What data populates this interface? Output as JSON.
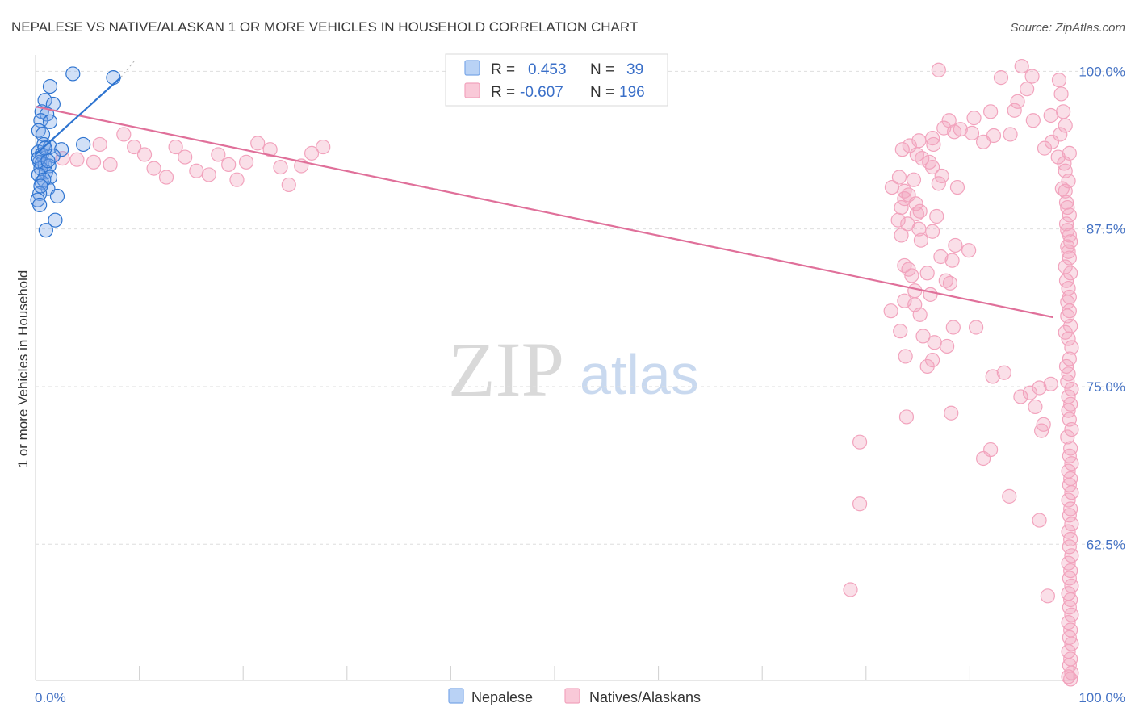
{
  "chart_data": {
    "type": "scatter",
    "title": "NEPALESE VS NATIVE/ALASKAN 1 OR MORE VEHICLES IN HOUSEHOLD CORRELATION CHART",
    "source": "Source: ZipAtlas.com",
    "xlabel": "",
    "ylabel": "1 or more Vehicles in Household",
    "xlim": [
      0,
      100
    ],
    "ylim": [
      51.7,
      101.3
    ],
    "x_tick_labels": [
      "0.0%",
      "100.0%"
    ],
    "y_ticks": [
      62.5,
      75.0,
      87.5,
      100.0
    ],
    "y_tick_labels": [
      "62.5%",
      "75.0%",
      "87.5%",
      "100.0%"
    ],
    "grid": true,
    "watermark": {
      "zip": "ZIP",
      "atlas": "atlas"
    },
    "colors": {
      "nepalese": "#7aa7e8",
      "nepalese_line": "#2e74d0",
      "natives": "#f2a3bd",
      "natives_line": "#e0709a"
    },
    "legend_stats": {
      "r_label": "R =",
      "n_label": "N =",
      "nepalese_r": "0.453",
      "nepalese_n": "39",
      "natives_r": "-0.607",
      "natives_n": "196"
    },
    "series": [
      {
        "name": "Nepalese",
        "trend": {
          "x": [
            0.0,
            8.2
          ],
          "y": [
            93.4,
            99.5
          ]
        },
        "points": [
          [
            3.6,
            99.8
          ],
          [
            7.5,
            99.5
          ],
          [
            1.4,
            98.8
          ],
          [
            0.9,
            97.7
          ],
          [
            1.7,
            97.4
          ],
          [
            0.6,
            96.8
          ],
          [
            1.1,
            96.6
          ],
          [
            0.5,
            96.1
          ],
          [
            1.4,
            96.0
          ],
          [
            0.3,
            95.3
          ],
          [
            0.7,
            95.0
          ],
          [
            4.6,
            94.2
          ],
          [
            0.8,
            94.2
          ],
          [
            1.4,
            94.0
          ],
          [
            2.5,
            93.8
          ],
          [
            0.3,
            93.6
          ],
          [
            0.6,
            93.4
          ],
          [
            1.7,
            93.3
          ],
          [
            0.4,
            92.8
          ],
          [
            0.6,
            92.7
          ],
          [
            0.9,
            92.6
          ],
          [
            1.3,
            92.5
          ],
          [
            0.5,
            92.3
          ],
          [
            1.0,
            92.0
          ],
          [
            0.3,
            91.8
          ],
          [
            1.4,
            91.6
          ],
          [
            0.6,
            91.2
          ],
          [
            1.2,
            90.7
          ],
          [
            0.4,
            90.3
          ],
          [
            2.1,
            90.1
          ],
          [
            0.2,
            89.8
          ],
          [
            0.4,
            89.4
          ],
          [
            1.9,
            88.2
          ],
          [
            1.0,
            87.4
          ],
          [
            0.3,
            93.1
          ],
          [
            0.8,
            91.4
          ],
          [
            1.2,
            92.9
          ],
          [
            0.5,
            90.9
          ],
          [
            0.9,
            93.9
          ]
        ]
      },
      {
        "name": "Natives/Alaskans",
        "trend": {
          "x": [
            0.0,
            98.0
          ],
          "y": [
            97.2,
            80.5
          ]
        },
        "points": [
          [
            95.0,
            100.4
          ],
          [
            87.0,
            100.1
          ],
          [
            93.0,
            99.5
          ],
          [
            96.0,
            99.6
          ],
          [
            95.5,
            98.6
          ],
          [
            98.8,
            98.2
          ],
          [
            94.6,
            97.6
          ],
          [
            94.3,
            96.9
          ],
          [
            92.0,
            96.8
          ],
          [
            90.4,
            96.3
          ],
          [
            88.0,
            96.1
          ],
          [
            87.5,
            95.5
          ],
          [
            88.5,
            95.2
          ],
          [
            89.1,
            95.4
          ],
          [
            90.2,
            95.1
          ],
          [
            86.4,
            94.7
          ],
          [
            85.1,
            94.5
          ],
          [
            86.5,
            94.2
          ],
          [
            92.3,
            94.9
          ],
          [
            93.9,
            95.0
          ],
          [
            91.3,
            94.4
          ],
          [
            84.2,
            94.1
          ],
          [
            83.5,
            93.8
          ],
          [
            84.9,
            93.4
          ],
          [
            85.4,
            93.1
          ],
          [
            86.1,
            92.8
          ],
          [
            86.4,
            92.4
          ],
          [
            87.3,
            91.7
          ],
          [
            87.0,
            91.1
          ],
          [
            83.2,
            91.6
          ],
          [
            84.6,
            91.4
          ],
          [
            88.8,
            90.8
          ],
          [
            82.5,
            90.8
          ],
          [
            83.7,
            90.5
          ],
          [
            84.1,
            90.2
          ],
          [
            83.7,
            89.9
          ],
          [
            84.8,
            89.5
          ],
          [
            83.4,
            89.2
          ],
          [
            85.2,
            88.9
          ],
          [
            86.8,
            88.5
          ],
          [
            84.9,
            88.7
          ],
          [
            83.1,
            88.2
          ],
          [
            84.0,
            87.9
          ],
          [
            85.1,
            87.5
          ],
          [
            86.4,
            87.3
          ],
          [
            83.4,
            87.0
          ],
          [
            85.3,
            86.6
          ],
          [
            88.6,
            86.2
          ],
          [
            89.9,
            85.8
          ],
          [
            87.2,
            85.3
          ],
          [
            88.3,
            85.0
          ],
          [
            83.7,
            84.6
          ],
          [
            84.1,
            84.3
          ],
          [
            85.9,
            84.0
          ],
          [
            84.4,
            83.8
          ],
          [
            87.7,
            83.4
          ],
          [
            88.1,
            83.2
          ],
          [
            84.7,
            82.6
          ],
          [
            86.2,
            82.3
          ],
          [
            83.7,
            81.8
          ],
          [
            84.7,
            81.5
          ],
          [
            82.4,
            81.0
          ],
          [
            85.2,
            80.7
          ],
          [
            88.4,
            79.7
          ],
          [
            90.6,
            79.7
          ],
          [
            83.3,
            79.4
          ],
          [
            85.5,
            79.0
          ],
          [
            86.6,
            78.5
          ],
          [
            87.8,
            78.2
          ],
          [
            83.8,
            77.4
          ],
          [
            86.4,
            77.1
          ],
          [
            85.9,
            76.6
          ],
          [
            93.3,
            76.1
          ],
          [
            92.2,
            75.8
          ],
          [
            97.8,
            75.2
          ],
          [
            96.7,
            74.9
          ],
          [
            95.8,
            74.5
          ],
          [
            94.9,
            74.2
          ],
          [
            96.3,
            73.4
          ],
          [
            88.2,
            72.9
          ],
          [
            83.9,
            72.6
          ],
          [
            97.1,
            72.0
          ],
          [
            96.9,
            71.5
          ],
          [
            79.4,
            70.6
          ],
          [
            92.0,
            70.0
          ],
          [
            91.3,
            69.3
          ],
          [
            93.8,
            66.3
          ],
          [
            96.7,
            64.4
          ],
          [
            79.4,
            65.7
          ],
          [
            78.5,
            58.9
          ],
          [
            97.5,
            58.4
          ],
          [
            98.6,
            99.3
          ],
          [
            99.0,
            96.8
          ],
          [
            97.8,
            96.5
          ],
          [
            96.1,
            96.1
          ],
          [
            99.2,
            95.7
          ],
          [
            98.7,
            95.0
          ],
          [
            97.9,
            94.4
          ],
          [
            97.2,
            93.9
          ],
          [
            99.6,
            93.5
          ],
          [
            98.5,
            93.2
          ],
          [
            99.1,
            92.7
          ],
          [
            99.2,
            92.1
          ],
          [
            99.5,
            91.3
          ],
          [
            98.9,
            90.7
          ],
          [
            99.2,
            90.5
          ],
          [
            99.3,
            89.6
          ],
          [
            99.4,
            89.2
          ],
          [
            99.6,
            88.6
          ],
          [
            99.3,
            87.9
          ],
          [
            99.4,
            87.4
          ],
          [
            99.6,
            87.0
          ],
          [
            99.7,
            86.5
          ],
          [
            99.4,
            86.1
          ],
          [
            99.5,
            85.7
          ],
          [
            99.6,
            85.2
          ],
          [
            99.2,
            84.5
          ],
          [
            99.7,
            84.0
          ],
          [
            99.3,
            83.4
          ],
          [
            99.5,
            82.8
          ],
          [
            99.6,
            82.1
          ],
          [
            99.4,
            81.7
          ],
          [
            99.6,
            81.0
          ],
          [
            99.4,
            80.6
          ],
          [
            99.7,
            79.8
          ],
          [
            99.2,
            79.3
          ],
          [
            99.5,
            78.8
          ],
          [
            99.8,
            78.1
          ],
          [
            99.6,
            77.2
          ],
          [
            99.3,
            76.6
          ],
          [
            99.5,
            76.0
          ],
          [
            99.4,
            75.4
          ],
          [
            99.8,
            74.8
          ],
          [
            99.5,
            74.2
          ],
          [
            99.7,
            73.6
          ],
          [
            99.5,
            73.1
          ],
          [
            99.6,
            72.4
          ],
          [
            99.8,
            71.6
          ],
          [
            99.4,
            71.0
          ],
          [
            99.7,
            70.1
          ],
          [
            99.6,
            69.5
          ],
          [
            99.8,
            68.9
          ],
          [
            99.5,
            68.3
          ],
          [
            99.7,
            67.7
          ],
          [
            99.6,
            67.2
          ],
          [
            99.8,
            66.6
          ],
          [
            99.5,
            66.0
          ],
          [
            99.7,
            65.3
          ],
          [
            99.6,
            64.8
          ],
          [
            99.8,
            64.1
          ],
          [
            99.5,
            63.5
          ],
          [
            99.7,
            62.9
          ],
          [
            99.6,
            62.3
          ],
          [
            99.8,
            61.6
          ],
          [
            99.5,
            61.0
          ],
          [
            99.7,
            60.4
          ],
          [
            99.6,
            59.8
          ],
          [
            99.8,
            59.2
          ],
          [
            99.5,
            58.6
          ],
          [
            99.7,
            58.1
          ],
          [
            99.6,
            57.5
          ],
          [
            99.8,
            56.9
          ],
          [
            99.5,
            56.3
          ],
          [
            99.7,
            55.7
          ],
          [
            99.6,
            55.1
          ],
          [
            99.8,
            54.6
          ],
          [
            99.5,
            54.0
          ],
          [
            99.7,
            53.4
          ],
          [
            99.6,
            52.9
          ],
          [
            99.8,
            52.3
          ],
          [
            99.5,
            52.0
          ],
          [
            99.7,
            51.8
          ],
          [
            2.6,
            93.1
          ],
          [
            4.0,
            93.0
          ],
          [
            5.6,
            92.8
          ],
          [
            6.2,
            94.2
          ],
          [
            7.2,
            92.6
          ],
          [
            8.5,
            95.0
          ],
          [
            9.5,
            94.0
          ],
          [
            10.5,
            93.4
          ],
          [
            11.4,
            92.3
          ],
          [
            12.6,
            91.6
          ],
          [
            13.5,
            94.0
          ],
          [
            14.4,
            93.2
          ],
          [
            15.5,
            92.1
          ],
          [
            16.7,
            91.8
          ],
          [
            17.6,
            93.4
          ],
          [
            18.6,
            92.6
          ],
          [
            19.4,
            91.4
          ],
          [
            20.3,
            92.8
          ],
          [
            21.4,
            94.3
          ],
          [
            22.6,
            93.8
          ],
          [
            23.6,
            92.4
          ],
          [
            24.4,
            91.0
          ],
          [
            25.6,
            92.5
          ],
          [
            26.6,
            93.5
          ],
          [
            27.7,
            94.0
          ]
        ]
      }
    ]
  }
}
